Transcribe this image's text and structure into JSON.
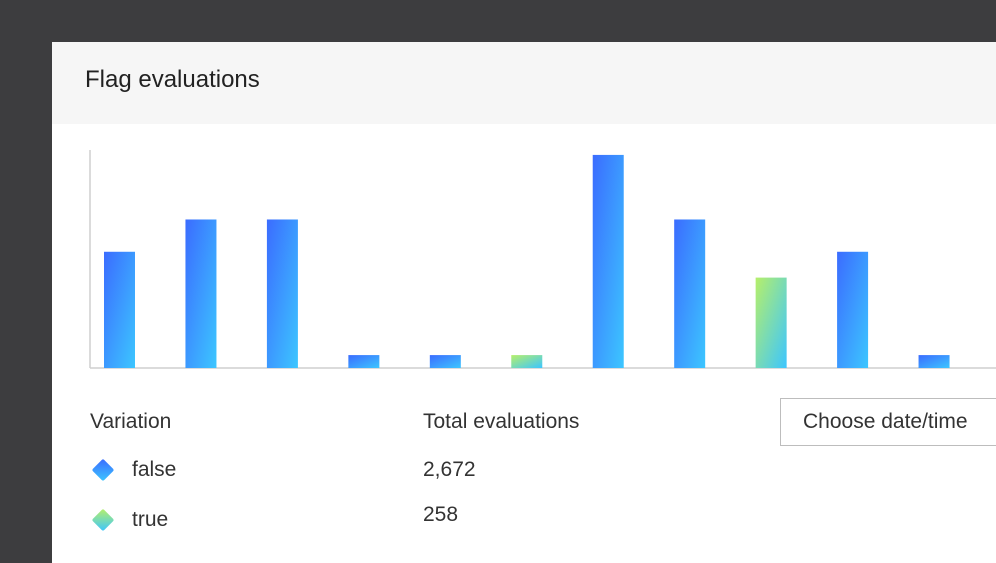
{
  "panel": {
    "title": "Flag evaluations"
  },
  "table": {
    "col_variation": "Variation",
    "col_total": "Total evaluations",
    "rows": [
      {
        "variation": "false",
        "total": "2,672",
        "color": "#3b7bff"
      },
      {
        "variation": "true",
        "total": "258",
        "color": "#9fe870"
      }
    ]
  },
  "controls": {
    "choose_date_label": "Choose date/time"
  },
  "colors": {
    "false_top": "#3b6cff",
    "false_bottom": "#3cc6ff",
    "true_top": "#b6ef6a",
    "true_bottom": "#3cc6ff",
    "axis": "#cfcfcf"
  },
  "chart_data": {
    "type": "bar",
    "ylim": [
      0,
      7
    ],
    "grid": false,
    "series": [
      {
        "values": [
          3.6,
          4.6,
          4.6,
          0.4,
          0.4,
          0,
          6.6,
          4.6,
          0,
          3.6,
          0.4
        ]
      },
      {
        "values": [
          0,
          0,
          0,
          0,
          0,
          0.4,
          0,
          0,
          2.8,
          0,
          0
        ]
      }
    ]
  }
}
